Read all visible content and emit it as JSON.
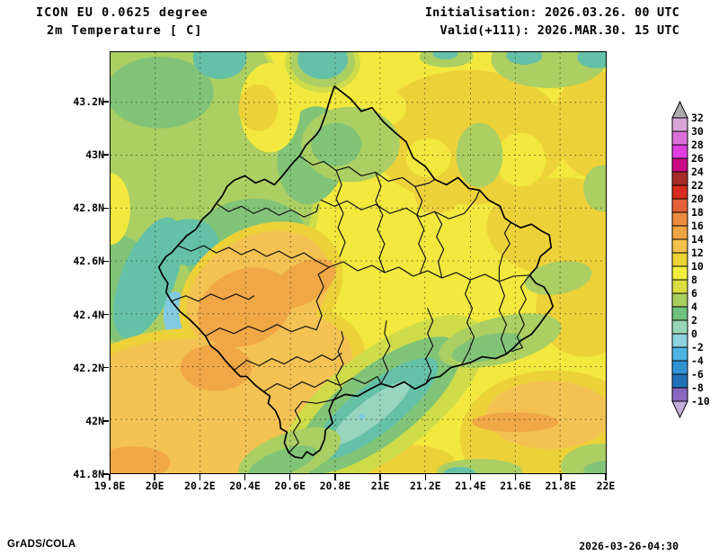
{
  "header": {
    "model_line": "ICON EU 0.0625 degree",
    "variable_line": "2m Temperature [ C]",
    "init_line": "Initialisation: 2026.03.26. 00 UTC",
    "valid_line": "Valid(+111): 2026.MAR.30. 15 UTC"
  },
  "map_axes": {
    "y_labels": [
      "43.2N",
      "43N",
      "42.8N",
      "42.6N",
      "42.4N",
      "42.2N",
      "42N",
      "41.8N"
    ],
    "x_labels": [
      "19.8E",
      "20E",
      "20.2E",
      "20.4E",
      "20.6E",
      "20.8E",
      "21E",
      "21.2E",
      "21.4E",
      "21.6E",
      "21.8E",
      "22E"
    ]
  },
  "colorbar": {
    "labels": [
      "32",
      "30",
      "28",
      "26",
      "24",
      "22",
      "20",
      "18",
      "16",
      "14",
      "12",
      "10",
      "8",
      "6",
      "4",
      "2",
      "0",
      "-2",
      "-4",
      "-6",
      "-8",
      "-10"
    ],
    "levels": [
      32,
      30,
      28,
      26,
      24,
      22,
      20,
      18,
      16,
      14,
      12,
      10,
      8,
      6,
      4,
      2,
      0,
      -2,
      -4,
      -6,
      -8,
      -10
    ],
    "colors_top_to_bottom": [
      "#d8a6d8",
      "#dc6fdc",
      "#e03ce0",
      "#cb0984",
      "#a72a28",
      "#d92b1e",
      "#e4613a",
      "#ec8b3e",
      "#f0a343",
      "#f0c247",
      "#ecd233",
      "#f3ee3d",
      "#d9df41",
      "#a8ce5d",
      "#6fc17d",
      "#98d6b8",
      "#8ed2df",
      "#4fb4e4",
      "#3193d2",
      "#2272b8",
      "#8a68c0"
    ],
    "over_arrow_color": "#ababab",
    "under_arrow_color": "#c5aede"
  },
  "footer": {
    "left": "GrADS/COLA",
    "right": "2026-03-26-04:30"
  }
}
